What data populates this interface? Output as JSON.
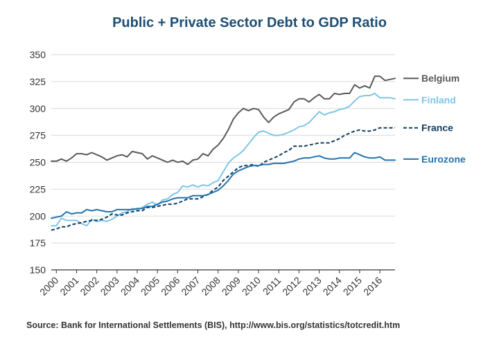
{
  "chart_data": {
    "type": "line",
    "title": "Public + Private Sector Debt to GDP Ratio",
    "xlabel": "",
    "ylabel": "",
    "ylim": [
      150,
      350
    ],
    "yticks": [
      150,
      175,
      200,
      225,
      250,
      275,
      300,
      325,
      350
    ],
    "xlim": [
      1999.75,
      2016.75
    ],
    "xticks": [
      2000,
      2001,
      2002,
      2003,
      2004,
      2005,
      2006,
      2007,
      2008,
      2009,
      2010,
      2011,
      2012,
      2013,
      2014,
      2015,
      2016
    ],
    "xtick_labels": [
      "2000",
      "2001",
      "2002",
      "2003",
      "2004",
      "2005",
      "2006",
      "2007",
      "2008",
      "2009",
      "2010",
      "2011",
      "2012",
      "2013",
      "2014",
      "2015",
      "2016"
    ],
    "grid": "horizontal",
    "legend": "right, at series ends",
    "series": [
      {
        "name": "Belgium",
        "color": "#58595b",
        "style": "solid",
        "x": [
          1999.75,
          2000.0,
          2000.25,
          2000.5,
          2000.75,
          2001.0,
          2001.25,
          2001.5,
          2001.75,
          2002.0,
          2002.25,
          2002.5,
          2002.75,
          2003.0,
          2003.25,
          2003.5,
          2003.75,
          2004.0,
          2004.25,
          2004.5,
          2004.75,
          2005.0,
          2005.25,
          2005.5,
          2005.75,
          2006.0,
          2006.25,
          2006.5,
          2006.75,
          2007.0,
          2007.25,
          2007.5,
          2007.75,
          2008.0,
          2008.25,
          2008.5,
          2008.75,
          2009.0,
          2009.25,
          2009.5,
          2009.75,
          2010.0,
          2010.25,
          2010.5,
          2010.75,
          2011.0,
          2011.25,
          2011.5,
          2011.75,
          2012.0,
          2012.25,
          2012.5,
          2012.75,
          2013.0,
          2013.25,
          2013.5,
          2013.75,
          2014.0,
          2014.25,
          2014.5,
          2014.75,
          2015.0,
          2015.25,
          2015.5,
          2015.75,
          2016.0,
          2016.25,
          2016.5,
          2016.75
        ],
        "values": [
          251,
          251,
          253,
          251,
          254,
          258,
          258,
          257,
          259,
          257,
          255,
          252,
          254,
          256,
          257,
          255,
          260,
          259,
          258,
          253,
          256,
          254,
          252,
          250,
          252,
          250,
          251,
          248,
          252,
          253,
          258,
          256,
          262,
          266,
          272,
          280,
          290,
          296,
          300,
          298,
          300,
          299,
          292,
          287,
          292,
          295,
          297,
          299,
          306,
          309,
          309,
          306,
          310,
          313,
          309,
          309,
          314,
          313,
          314,
          314,
          322,
          319,
          321,
          319,
          330,
          330,
          326,
          327,
          328
        ]
      },
      {
        "name": "Finland",
        "color": "#7ec5e5",
        "style": "solid",
        "x": [
          1999.75,
          2000.0,
          2000.25,
          2000.5,
          2000.75,
          2001.0,
          2001.25,
          2001.5,
          2001.75,
          2002.0,
          2002.25,
          2002.5,
          2002.75,
          2003.0,
          2003.25,
          2003.5,
          2003.75,
          2004.0,
          2004.25,
          2004.5,
          2004.75,
          2005.0,
          2005.25,
          2005.5,
          2005.75,
          2006.0,
          2006.25,
          2006.5,
          2006.75,
          2007.0,
          2007.25,
          2007.5,
          2007.75,
          2008.0,
          2008.25,
          2008.5,
          2008.75,
          2009.0,
          2009.25,
          2009.5,
          2009.75,
          2010.0,
          2010.25,
          2010.5,
          2010.75,
          2011.0,
          2011.25,
          2011.5,
          2011.75,
          2012.0,
          2012.25,
          2012.5,
          2012.75,
          2013.0,
          2013.25,
          2013.5,
          2013.75,
          2014.0,
          2014.25,
          2014.5,
          2014.75,
          2015.0,
          2015.25,
          2015.5,
          2015.75,
          2016.0,
          2016.25,
          2016.5,
          2016.75
        ],
        "values": [
          191,
          191,
          198,
          196,
          196,
          196,
          193,
          191,
          197,
          195,
          196,
          195,
          197,
          200,
          203,
          204,
          207,
          206,
          208,
          211,
          213,
          210,
          215,
          216,
          220,
          222,
          228,
          227,
          229,
          227,
          229,
          228,
          231,
          233,
          241,
          249,
          254,
          257,
          261,
          267,
          273,
          278,
          279,
          277,
          275,
          275,
          276,
          278,
          280,
          283,
          284,
          287,
          292,
          297,
          294,
          296,
          297,
          299,
          300,
          302,
          307,
          311,
          312,
          312,
          314,
          310,
          310,
          310,
          309
        ]
      },
      {
        "name": "France",
        "color": "#0d3a5e",
        "style": "dashed",
        "x": [
          1999.75,
          2000.0,
          2000.25,
          2000.5,
          2000.75,
          2001.0,
          2001.25,
          2001.5,
          2001.75,
          2002.0,
          2002.25,
          2002.5,
          2002.75,
          2003.0,
          2003.25,
          2003.5,
          2003.75,
          2004.0,
          2004.25,
          2004.5,
          2004.75,
          2005.0,
          2005.25,
          2005.5,
          2005.75,
          2006.0,
          2006.25,
          2006.5,
          2006.75,
          2007.0,
          2007.25,
          2007.5,
          2007.75,
          2008.0,
          2008.25,
          2008.5,
          2008.75,
          2009.0,
          2009.25,
          2009.5,
          2009.75,
          2010.0,
          2010.25,
          2010.5,
          2010.75,
          2011.0,
          2011.25,
          2011.5,
          2011.75,
          2012.0,
          2012.25,
          2012.5,
          2012.75,
          2013.0,
          2013.25,
          2013.5,
          2013.75,
          2014.0,
          2014.25,
          2014.5,
          2014.75,
          2015.0,
          2015.25,
          2015.5,
          2015.75,
          2016.0,
          2016.25,
          2016.5,
          2016.75
        ],
        "values": [
          187,
          188,
          190,
          190,
          192,
          193,
          194,
          195,
          196,
          196,
          197,
          199,
          202,
          201,
          201,
          203,
          204,
          205,
          205,
          208,
          208,
          209,
          210,
          211,
          211,
          212,
          214,
          216,
          216,
          216,
          218,
          220,
          224,
          227,
          233,
          237,
          241,
          245,
          247,
          247,
          248,
          246,
          250,
          252,
          254,
          256,
          259,
          261,
          265,
          265,
          265,
          266,
          267,
          268,
          268,
          268,
          270,
          272,
          275,
          277,
          279,
          280,
          279,
          279,
          280,
          282,
          282,
          282,
          282
        ]
      },
      {
        "name": "Eurozone",
        "color": "#1f73ad",
        "style": "solid",
        "x": [
          1999.75,
          2000.0,
          2000.25,
          2000.5,
          2000.75,
          2001.0,
          2001.25,
          2001.5,
          2001.75,
          2002.0,
          2002.25,
          2002.5,
          2002.75,
          2003.0,
          2003.25,
          2003.5,
          2003.75,
          2004.0,
          2004.25,
          2004.5,
          2004.75,
          2005.0,
          2005.25,
          2005.5,
          2005.75,
          2006.0,
          2006.25,
          2006.5,
          2006.75,
          2007.0,
          2007.25,
          2007.5,
          2007.75,
          2008.0,
          2008.25,
          2008.5,
          2008.75,
          2009.0,
          2009.25,
          2009.5,
          2009.75,
          2010.0,
          2010.25,
          2010.5,
          2010.75,
          2011.0,
          2011.25,
          2011.5,
          2011.75,
          2012.0,
          2012.25,
          2012.5,
          2012.75,
          2013.0,
          2013.25,
          2013.5,
          2013.75,
          2014.0,
          2014.25,
          2014.5,
          2014.75,
          2015.0,
          2015.25,
          2015.5,
          2015.75,
          2016.0,
          2016.25,
          2016.5,
          2016.75
        ],
        "values": [
          198,
          199,
          200,
          204,
          202,
          203,
          203,
          206,
          205,
          206,
          205,
          204,
          204,
          206,
          206,
          206,
          206,
          207,
          207,
          209,
          209,
          211,
          213,
          214,
          216,
          217,
          217,
          217,
          219,
          219,
          219,
          220,
          222,
          224,
          228,
          233,
          239,
          242,
          244,
          246,
          247,
          247,
          248,
          248,
          249,
          249,
          249,
          250,
          251,
          253,
          254,
          254,
          255,
          256,
          254,
          253,
          253,
          254,
          254,
          254,
          259,
          257,
          255,
          254,
          254,
          255,
          252,
          252,
          252
        ]
      }
    ],
    "source": "Source: Bank for International Settlements (BIS), http://www.bis.org/statistics/totcredit.htm"
  }
}
